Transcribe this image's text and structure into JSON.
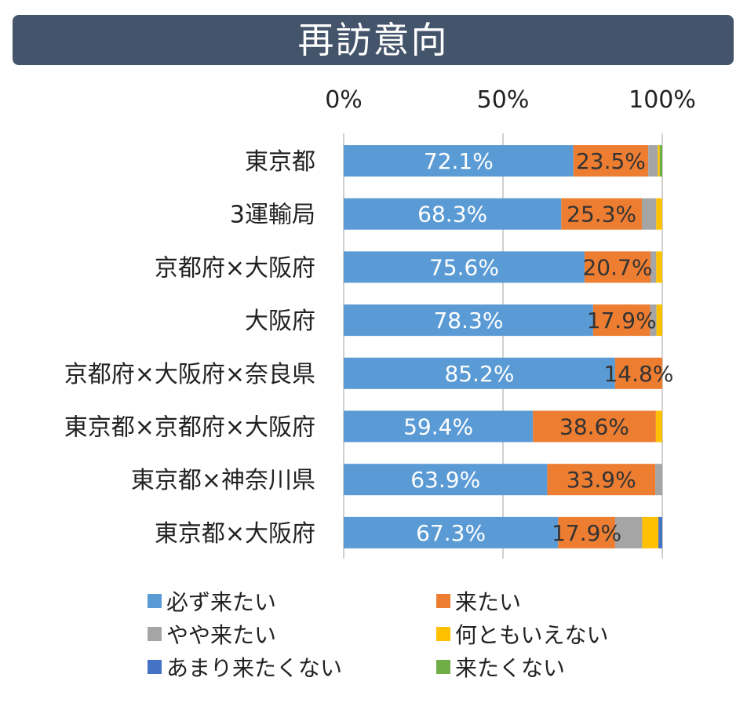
{
  "title": "再訪意向",
  "chart_data": {
    "type": "stacked-bar-horizontal",
    "title": "再訪意向",
    "xlim": [
      0,
      100
    ],
    "x_ticks": [
      "0%",
      "50%",
      "100%"
    ],
    "categories": [
      "東京都",
      "3運輸局",
      "京都府×大阪府",
      "大阪府",
      "京都府×大阪府×奈良県",
      "東京都×京都府×大阪府",
      "東京都×神奈川県",
      "東京都×大阪府"
    ],
    "series": [
      {
        "name": "必ず来たい",
        "color": "#5b9bd5",
        "values": [
          72.1,
          68.3,
          75.6,
          78.3,
          85.2,
          59.4,
          63.9,
          67.3
        ],
        "labels": [
          "72.1%",
          "68.3%",
          "75.6%",
          "78.3%",
          "85.2%",
          "59.4%",
          "63.9%",
          "67.3%"
        ]
      },
      {
        "name": "来たい",
        "color": "#ed7d31",
        "values": [
          23.5,
          25.3,
          20.7,
          17.9,
          14.8,
          38.6,
          33.9,
          17.9
        ],
        "labels": [
          "23.5%",
          "25.3%",
          "20.7%",
          "17.9%",
          "14.8%",
          "38.6%",
          "33.9%",
          "17.9%"
        ]
      },
      {
        "name": "やや来たい",
        "color": "#a5a5a5",
        "values": [
          3.0,
          4.5,
          1.8,
          2.0,
          0,
          0,
          2.2,
          8.5
        ]
      },
      {
        "name": "何ともいえない",
        "color": "#ffc000",
        "values": [
          0.6,
          1.9,
          1.9,
          1.8,
          0,
          2.0,
          0,
          5.1
        ]
      },
      {
        "name": "あまり来たくない",
        "color": "#4472c4",
        "values": [
          0,
          0,
          0,
          0,
          0,
          0,
          0,
          1.2
        ]
      },
      {
        "name": "来たくない",
        "color": "#70ad47",
        "values": [
          0.8,
          0,
          0,
          0,
          0,
          0,
          0,
          0
        ]
      }
    ],
    "legend_position": "bottom"
  }
}
